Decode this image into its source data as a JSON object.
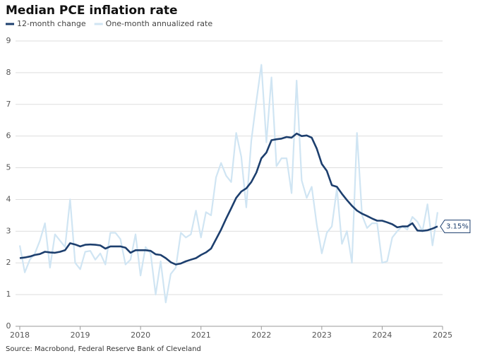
{
  "chart_data": {
    "type": "line",
    "title": "Median PCE inflation rate",
    "source": "Source: Macrobond, Federal Reserve Bank of Cleveland",
    "x": [
      2018,
      2018.083,
      2018.167,
      2018.25,
      2018.333,
      2018.417,
      2018.5,
      2018.583,
      2018.667,
      2018.75,
      2018.833,
      2018.917,
      2019,
      2019.083,
      2019.167,
      2019.25,
      2019.333,
      2019.417,
      2019.5,
      2019.583,
      2019.667,
      2019.75,
      2019.833,
      2019.917,
      2020,
      2020.083,
      2020.167,
      2020.25,
      2020.333,
      2020.417,
      2020.5,
      2020.583,
      2020.667,
      2020.75,
      2020.833,
      2020.917,
      2021,
      2021.083,
      2021.167,
      2021.25,
      2021.333,
      2021.417,
      2021.5,
      2021.583,
      2021.667,
      2021.75,
      2021.833,
      2021.917,
      2022,
      2022.083,
      2022.167,
      2022.25,
      2022.333,
      2022.417,
      2022.5,
      2022.583,
      2022.667,
      2022.75,
      2022.833,
      2022.917,
      2023,
      2023.083,
      2023.167,
      2023.25,
      2023.333,
      2023.417,
      2023.5,
      2023.583,
      2023.667,
      2023.75,
      2023.833,
      2023.917,
      2024,
      2024.083,
      2024.167,
      2024.25,
      2024.333,
      2024.417,
      2024.5,
      2024.583,
      2024.667,
      2024.75,
      2024.833,
      2024.917
    ],
    "series": [
      {
        "name": "One-month annualized rate",
        "color": "#d0e5f3",
        "width": 2.2,
        "values": [
          2.55,
          1.7,
          2.1,
          2.3,
          2.7,
          3.25,
          1.85,
          2.9,
          2.7,
          2.5,
          4.0,
          2.0,
          1.8,
          2.35,
          2.38,
          2.1,
          2.3,
          1.95,
          2.95,
          2.95,
          2.75,
          1.95,
          2.1,
          2.9,
          1.6,
          2.5,
          2.3,
          1.0,
          2.05,
          0.75,
          1.65,
          1.85,
          2.95,
          2.8,
          2.9,
          3.65,
          2.8,
          3.6,
          3.5,
          4.7,
          5.15,
          4.75,
          4.55,
          6.1,
          5.35,
          3.75,
          5.85,
          7.1,
          8.25,
          5.8,
          7.85,
          5.05,
          5.3,
          5.3,
          4.2,
          7.75,
          4.6,
          4.05,
          4.4,
          3.2,
          2.3,
          2.95,
          3.15,
          4.35,
          2.6,
          3.0,
          2.0,
          6.1,
          3.5,
          3.1,
          3.25,
          3.25,
          2.0,
          2.05,
          2.8,
          3.0,
          3.15,
          3.05,
          3.45,
          3.3,
          3.0,
          3.85,
          2.55,
          3.6
        ]
      },
      {
        "name": "12-month change",
        "color": "#1d3f6e",
        "width": 2.6,
        "values": [
          2.15,
          2.17,
          2.2,
          2.25,
          2.28,
          2.35,
          2.33,
          2.32,
          2.35,
          2.4,
          2.62,
          2.58,
          2.52,
          2.57,
          2.58,
          2.57,
          2.55,
          2.45,
          2.52,
          2.52,
          2.52,
          2.48,
          2.32,
          2.4,
          2.4,
          2.4,
          2.38,
          2.27,
          2.25,
          2.15,
          2.02,
          1.95,
          1.98,
          2.05,
          2.1,
          2.15,
          2.25,
          2.33,
          2.45,
          2.75,
          3.05,
          3.4,
          3.72,
          4.05,
          4.25,
          4.35,
          4.55,
          4.85,
          5.3,
          5.48,
          5.87,
          5.9,
          5.92,
          5.97,
          5.95,
          6.08,
          6.0,
          6.02,
          5.95,
          5.6,
          5.12,
          4.9,
          4.45,
          4.4,
          4.18,
          3.98,
          3.8,
          3.65,
          3.55,
          3.48,
          3.4,
          3.33,
          3.33,
          3.28,
          3.22,
          3.12,
          3.15,
          3.15,
          3.25,
          3.02,
          3.01,
          3.03,
          3.08,
          3.15
        ],
        "end_label": "3.15%"
      }
    ],
    "legend_order": [
      1,
      0
    ],
    "xlim": [
      2018,
      2025
    ],
    "xticks": [
      2018,
      2019,
      2020,
      2021,
      2022,
      2023,
      2024,
      2025
    ],
    "ylim": [
      0,
      9
    ],
    "yticks": [
      0,
      1,
      2,
      3,
      4,
      5,
      6,
      7,
      8,
      9
    ],
    "grid": true
  }
}
